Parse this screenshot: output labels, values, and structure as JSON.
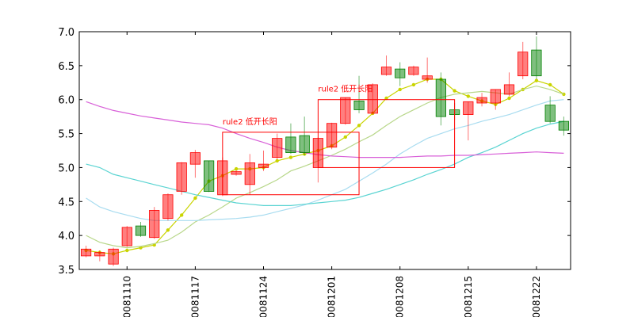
{
  "chart_data": {
    "type": "candlestick",
    "title": "",
    "xlabel": "",
    "ylabel": "",
    "ylim": [
      3.5,
      7.0
    ],
    "yticks": [
      3.5,
      4.0,
      4.5,
      5.0,
      5.5,
      6.0,
      6.5,
      7.0
    ],
    "ytick_labels": [
      "3.5",
      "4.0",
      "4.5",
      "5.0",
      "5.5",
      "6.0",
      "6.5",
      "7.0"
    ],
    "xtick_labels": [
      {
        "index": 3,
        "label": "20081110"
      },
      {
        "index": 8,
        "label": "20081117"
      },
      {
        "index": 13,
        "label": "20081124"
      },
      {
        "index": 18,
        "label": "20081201"
      },
      {
        "index": 23,
        "label": "20081208"
      },
      {
        "index": 28,
        "label": "20081215"
      },
      {
        "index": 33,
        "label": "20081222"
      }
    ],
    "grid": false,
    "up_color": "#ff0000",
    "down_color": "#008000",
    "candles": [
      {
        "o": 3.7,
        "c": 3.8,
        "h": 3.85,
        "l": 3.68
      },
      {
        "o": 3.7,
        "c": 3.75,
        "h": 3.78,
        "l": 3.62
      },
      {
        "o": 3.58,
        "c": 3.8,
        "h": 3.82,
        "l": 3.55
      },
      {
        "o": 3.85,
        "c": 4.12,
        "h": 4.14,
        "l": 3.83
      },
      {
        "o": 4.14,
        "c": 4.0,
        "h": 4.2,
        "l": 3.98
      },
      {
        "o": 3.97,
        "c": 4.37,
        "h": 4.42,
        "l": 3.95
      },
      {
        "o": 4.25,
        "c": 4.6,
        "h": 4.62,
        "l": 4.22
      },
      {
        "o": 4.65,
        "c": 5.07,
        "h": 5.08,
        "l": 4.6
      },
      {
        "o": 5.05,
        "c": 5.22,
        "h": 5.26,
        "l": 4.85
      },
      {
        "o": 5.1,
        "c": 4.65,
        "h": 5.1,
        "l": 4.64
      },
      {
        "o": 4.6,
        "c": 5.1,
        "h": 5.15,
        "l": 4.58
      },
      {
        "o": 4.9,
        "c": 4.94,
        "h": 4.96,
        "l": 4.88
      },
      {
        "o": 4.75,
        "c": 5.07,
        "h": 5.2,
        "l": 4.6
      },
      {
        "o": 5.0,
        "c": 5.05,
        "h": 5.25,
        "l": 4.95
      },
      {
        "o": 5.15,
        "c": 5.43,
        "h": 5.5,
        "l": 5.12
      },
      {
        "o": 5.45,
        "c": 5.22,
        "h": 5.65,
        "l": 5.2
      },
      {
        "o": 5.47,
        "c": 5.22,
        "h": 5.75,
        "l": 5.18
      },
      {
        "o": 5.0,
        "c": 5.43,
        "h": 5.45,
        "l": 4.78
      },
      {
        "o": 5.3,
        "c": 5.65,
        "h": 5.66,
        "l": 5.27
      },
      {
        "o": 5.65,
        "c": 6.03,
        "h": 6.03,
        "l": 5.63
      },
      {
        "o": 5.98,
        "c": 5.85,
        "h": 6.35,
        "l": 5.8
      },
      {
        "o": 5.8,
        "c": 6.22,
        "h": 6.24,
        "l": 5.78
      },
      {
        "o": 6.37,
        "c": 6.48,
        "h": 6.65,
        "l": 6.35
      },
      {
        "o": 6.45,
        "c": 6.32,
        "h": 6.55,
        "l": 6.2
      },
      {
        "o": 6.37,
        "c": 6.48,
        "h": 6.5,
        "l": 6.35
      },
      {
        "o": 6.3,
        "c": 6.35,
        "h": 6.62,
        "l": 6.25
      },
      {
        "o": 6.3,
        "c": 5.75,
        "h": 6.4,
        "l": 5.62
      },
      {
        "o": 5.85,
        "c": 5.78,
        "h": 5.95,
        "l": 5.7
      },
      {
        "o": 5.78,
        "c": 5.97,
        "h": 5.97,
        "l": 5.4
      },
      {
        "o": 5.95,
        "c": 6.03,
        "h": 6.1,
        "l": 5.9
      },
      {
        "o": 5.95,
        "c": 6.15,
        "h": 6.15,
        "l": 5.85
      },
      {
        "o": 6.08,
        "c": 6.22,
        "h": 6.4,
        "l": 6.05
      },
      {
        "o": 6.35,
        "c": 6.7,
        "h": 6.85,
        "l": 6.3
      },
      {
        "o": 6.73,
        "c": 6.35,
        "h": 6.93,
        "l": 6.3
      },
      {
        "o": 5.92,
        "c": 5.68,
        "h": 6.05,
        "l": 5.65
      },
      {
        "o": 5.68,
        "c": 5.55,
        "h": 5.75,
        "l": 5.47
      }
    ],
    "series": [
      {
        "color": "#c9d400",
        "marker": true,
        "values": [
          3.78,
          3.75,
          3.73,
          3.78,
          3.82,
          3.86,
          4.08,
          4.3,
          4.55,
          4.8,
          4.88,
          4.98,
          4.98,
          5.0,
          5.1,
          5.15,
          5.2,
          5.25,
          5.32,
          5.45,
          5.62,
          5.8,
          6.02,
          6.15,
          6.22,
          6.3,
          6.3,
          6.13,
          6.05,
          5.98,
          5.93,
          6.02,
          6.15,
          6.28,
          6.22,
          6.08
        ]
      },
      {
        "color": "#b8d78a",
        "marker": false,
        "values": [
          4.0,
          3.9,
          3.85,
          3.82,
          3.84,
          3.88,
          3.93,
          4.05,
          4.2,
          4.3,
          4.42,
          4.55,
          4.63,
          4.72,
          4.82,
          4.95,
          5.02,
          5.1,
          5.18,
          5.27,
          5.38,
          5.48,
          5.62,
          5.75,
          5.85,
          5.95,
          6.03,
          6.08,
          6.1,
          6.12,
          6.1,
          6.08,
          6.15,
          6.2,
          6.15,
          6.08
        ]
      },
      {
        "color": "#a8dcf0",
        "marker": false,
        "values": [
          4.55,
          4.42,
          4.35,
          4.3,
          4.25,
          4.22,
          4.22,
          4.22,
          4.22,
          4.23,
          4.24,
          4.25,
          4.27,
          4.3,
          4.35,
          4.4,
          4.45,
          4.52,
          4.6,
          4.68,
          4.8,
          4.92,
          5.05,
          5.2,
          5.32,
          5.43,
          5.5,
          5.57,
          5.62,
          5.68,
          5.73,
          5.78,
          5.85,
          5.92,
          5.98,
          6.0
        ]
      },
      {
        "color": "#5ad4d2",
        "marker": false,
        "values": [
          5.05,
          5.0,
          4.9,
          4.85,
          4.8,
          4.75,
          4.7,
          4.65,
          4.6,
          4.56,
          4.52,
          4.48,
          4.46,
          4.44,
          4.44,
          4.44,
          4.46,
          4.48,
          4.5,
          4.52,
          4.56,
          4.62,
          4.68,
          4.75,
          4.82,
          4.9,
          4.97,
          5.05,
          5.15,
          5.22,
          5.3,
          5.4,
          5.5,
          5.58,
          5.64,
          5.68
        ]
      },
      {
        "color": "#d860d8",
        "marker": false,
        "values": [
          5.97,
          5.9,
          5.84,
          5.8,
          5.76,
          5.73,
          5.7,
          5.67,
          5.65,
          5.63,
          5.58,
          5.5,
          5.43,
          5.37,
          5.3,
          5.25,
          5.22,
          5.19,
          5.17,
          5.16,
          5.15,
          5.15,
          5.15,
          5.15,
          5.16,
          5.17,
          5.17,
          5.18,
          5.18,
          5.19,
          5.2,
          5.21,
          5.22,
          5.23,
          5.22,
          5.21
        ]
      }
    ],
    "annotations": [
      {
        "label": "rule2 低开长阳",
        "x0": 10,
        "x1": 20,
        "y_top": 5.52,
        "y_bottom": 4.6,
        "color": "#ff0000"
      },
      {
        "label": "rule2 低开长阳",
        "x0": 17,
        "x1": 27,
        "y_top": 6.0,
        "y_bottom": 5.0,
        "color": "#ff0000"
      }
    ]
  }
}
